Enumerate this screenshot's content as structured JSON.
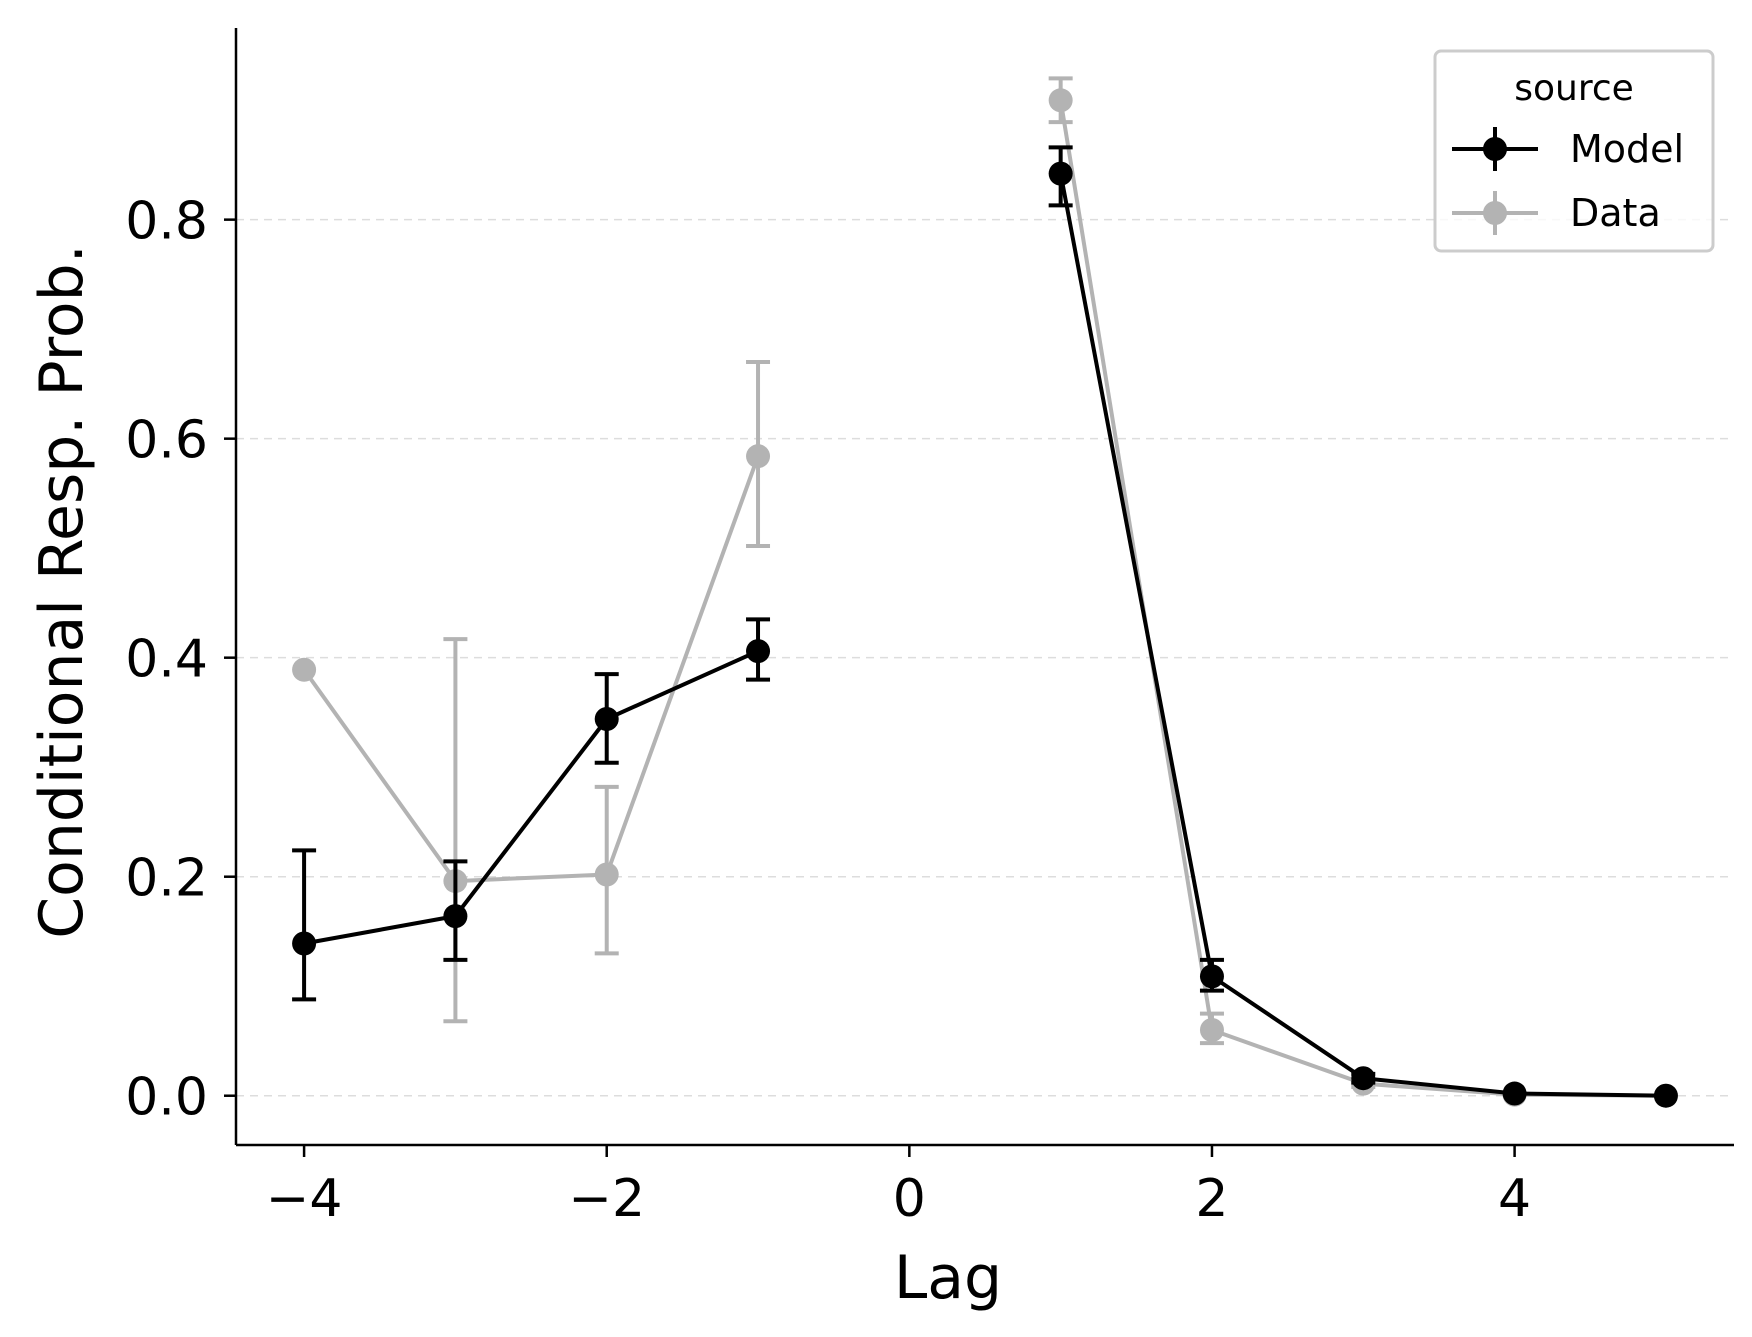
{
  "chart_data": {
    "type": "line",
    "title": "",
    "xlabel": "Lag",
    "ylabel": "Conditional Resp. Prob.",
    "xlim": [
      -4.45,
      5.45
    ],
    "ylim": [
      -0.045,
      0.975
    ],
    "xticks": [
      -4,
      -2,
      0,
      2,
      4
    ],
    "xtick_labels": [
      "−4",
      "−2",
      "0",
      "2",
      "4"
    ],
    "yticks": [
      0.0,
      0.2,
      0.4,
      0.6,
      0.8
    ],
    "ytick_labels": [
      "0.0",
      "0.2",
      "0.4",
      "0.6",
      "0.8"
    ],
    "grid": "horizontal dashed",
    "legend": {
      "title": "source",
      "position": "top-right"
    },
    "series": [
      {
        "name": "Model",
        "color": "#000000",
        "segments": [
          {
            "x": [
              -4,
              -3,
              -2,
              -1
            ],
            "y": [
              0.139,
              0.164,
              0.344,
              0.406
            ],
            "err_low": [
              0.088,
              0.124,
              0.304,
              0.38
            ],
            "err_high": [
              0.224,
              0.214,
              0.385,
              0.435
            ]
          },
          {
            "x": [
              1,
              2,
              3,
              4,
              5
            ],
            "y": [
              0.842,
              0.109,
              0.016,
              0.002,
              0.0
            ],
            "err_low": [
              0.813,
              0.096,
              0.012,
              0.001,
              0.0
            ],
            "err_high": [
              0.866,
              0.124,
              0.02,
              0.003,
              0.0
            ]
          }
        ]
      },
      {
        "name": "Data",
        "color": "#b3b3b3",
        "segments": [
          {
            "x": [
              -4,
              -3,
              -2,
              -1
            ],
            "y": [
              0.389,
              0.196,
              0.202,
              0.584
            ],
            "err_low": [
              0.389,
              0.068,
              0.13,
              0.502
            ],
            "err_high": [
              0.389,
              0.417,
              0.282,
              0.67
            ]
          },
          {
            "x": [
              1,
              2,
              3,
              4,
              5
            ],
            "y": [
              0.909,
              0.06,
              0.011,
              0.001,
              0.0
            ],
            "err_low": [
              0.889,
              0.048,
              0.008,
              0.0,
              0.0
            ],
            "err_high": [
              0.929,
              0.075,
              0.014,
              0.002,
              0.0
            ]
          }
        ]
      }
    ]
  }
}
